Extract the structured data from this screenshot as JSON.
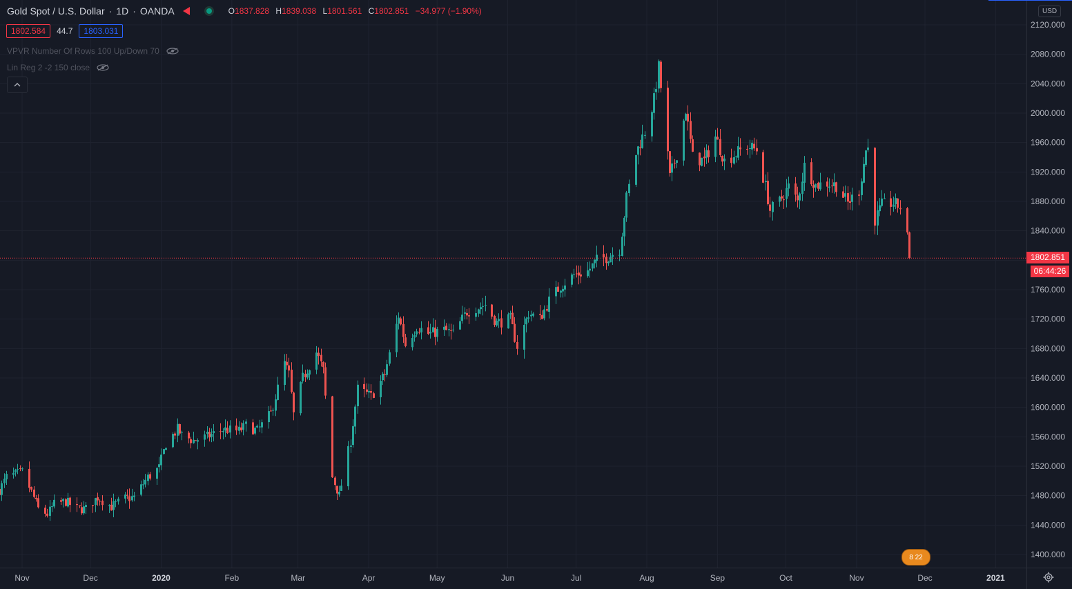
{
  "header": {
    "symbol": "Gold Spot / U.S. Dollar",
    "interval": "1D",
    "exchange": "OANDA",
    "open_label": "O",
    "open": "1837.828",
    "high_label": "H",
    "high": "1839.038",
    "low_label": "L",
    "low": "1801.561",
    "close_label": "C",
    "close": "1802.851",
    "change": "−34.977 (−1.90%)"
  },
  "quote": {
    "bid": "1802.584",
    "spread": "44.7",
    "ask": "1803.031"
  },
  "indicators": [
    {
      "label": "VPVR Number Of Rows 100 Up/Down 70"
    },
    {
      "label": "Lin Reg 2 -2 150 close"
    }
  ],
  "price_axis": {
    "currency": "USD",
    "current_price": "1802.851",
    "countdown": "06:44:26"
  },
  "events_badge": "8 22",
  "colors": {
    "background": "#161a25",
    "up": "#26a69a",
    "down": "#ef5350",
    "grid": "#1f2330",
    "text": "#b2b5be",
    "price_line": "#f23645"
  },
  "chart_data": {
    "type": "candlestick",
    "title": "Gold Spot / U.S. Dollar",
    "ylim": [
      1380,
      2130
    ],
    "y_ticks": [
      1400,
      1440,
      1480,
      1520,
      1560,
      1600,
      1640,
      1680,
      1720,
      1760,
      1800,
      1840,
      1880,
      1920,
      1960,
      2000,
      2040,
      2080,
      2120
    ],
    "y_tick_labels": [
      "1400.000",
      "1440.000",
      "1480.000",
      "1520.000",
      "1560.000",
      "1600.000",
      "1640.000",
      "1680.000",
      "1720.000",
      "1760.000",
      "1800.000",
      "1840.000",
      "1880.000",
      "1920.000",
      "1960.000",
      "2000.000",
      "2040.000",
      "2080.000",
      "2120.000"
    ],
    "x_tick_labels": [
      {
        "label": "Nov",
        "date": "2019-11-01"
      },
      {
        "label": "Dec",
        "date": "2019-12-01"
      },
      {
        "label": "2020",
        "date": "2020-01-01",
        "bold": true
      },
      {
        "label": "Feb",
        "date": "2020-02-01"
      },
      {
        "label": "Mar",
        "date": "2020-03-01"
      },
      {
        "label": "Apr",
        "date": "2020-04-01"
      },
      {
        "label": "May",
        "date": "2020-05-01"
      },
      {
        "label": "Jun",
        "date": "2020-06-01"
      },
      {
        "label": "Jul",
        "date": "2020-07-01"
      },
      {
        "label": "Aug",
        "date": "2020-08-01"
      },
      {
        "label": "Sep",
        "date": "2020-09-01"
      },
      {
        "label": "Oct",
        "date": "2020-10-01"
      },
      {
        "label": "Nov",
        "date": "2020-11-01"
      },
      {
        "label": "Dec",
        "date": "2020-12-01"
      },
      {
        "label": "2021",
        "date": "2021-01-01",
        "bold": true
      }
    ],
    "current_price": 1802.851,
    "close_keypoints": [
      [
        "2019-10-22",
        1488
      ],
      [
        "2019-10-25",
        1505
      ],
      [
        "2019-11-01",
        1512
      ],
      [
        "2019-11-05",
        1485
      ],
      [
        "2019-11-08",
        1462
      ],
      [
        "2019-11-12",
        1455
      ],
      [
        "2019-11-15",
        1468
      ],
      [
        "2019-11-20",
        1472
      ],
      [
        "2019-11-25",
        1462
      ],
      [
        "2019-11-29",
        1462
      ],
      [
        "2019-12-04",
        1478
      ],
      [
        "2019-12-10",
        1465
      ],
      [
        "2019-12-16",
        1476
      ],
      [
        "2019-12-20",
        1478
      ],
      [
        "2019-12-26",
        1505
      ],
      [
        "2019-12-31",
        1518
      ],
      [
        "2020-01-03",
        1551
      ],
      [
        "2020-01-08",
        1570
      ],
      [
        "2020-01-10",
        1562
      ],
      [
        "2020-01-15",
        1555
      ],
      [
        "2020-01-21",
        1560
      ],
      [
        "2020-01-28",
        1570
      ],
      [
        "2020-02-04",
        1568
      ],
      [
        "2020-02-07",
        1575
      ],
      [
        "2020-02-12",
        1568
      ],
      [
        "2020-02-18",
        1592
      ],
      [
        "2020-02-24",
        1660
      ],
      [
        "2020-02-26",
        1645
      ],
      [
        "2020-02-28",
        1590
      ],
      [
        "2020-03-03",
        1640
      ],
      [
        "2020-03-09",
        1675
      ],
      [
        "2020-03-12",
        1650
      ],
      [
        "2020-03-16",
        1505
      ],
      [
        "2020-03-19",
        1480
      ],
      [
        "2020-03-24",
        1555
      ],
      [
        "2020-03-27",
        1625
      ],
      [
        "2020-04-02",
        1615
      ],
      [
        "2020-04-08",
        1645
      ],
      [
        "2020-04-14",
        1725
      ],
      [
        "2020-04-17",
        1685
      ],
      [
        "2020-04-22",
        1710
      ],
      [
        "2020-04-27",
        1700
      ],
      [
        "2020-05-04",
        1705
      ],
      [
        "2020-05-08",
        1700
      ],
      [
        "2020-05-14",
        1730
      ],
      [
        "2020-05-18",
        1735
      ],
      [
        "2020-05-22",
        1740
      ],
      [
        "2020-05-27",
        1715
      ],
      [
        "2020-06-02",
        1720
      ],
      [
        "2020-06-05",
        1683
      ],
      [
        "2020-06-10",
        1728
      ],
      [
        "2020-06-15",
        1720
      ],
      [
        "2020-06-19",
        1745
      ],
      [
        "2020-06-24",
        1765
      ],
      [
        "2020-06-30",
        1780
      ],
      [
        "2020-07-06",
        1785
      ],
      [
        "2020-07-10",
        1800
      ],
      [
        "2020-07-15",
        1805
      ],
      [
        "2020-07-20",
        1815
      ],
      [
        "2020-07-23",
        1885
      ],
      [
        "2020-07-27",
        1945
      ],
      [
        "2020-07-31",
        1975
      ],
      [
        "2020-08-04",
        2018
      ],
      [
        "2020-08-06",
        2062
      ],
      [
        "2020-08-07",
        2035
      ],
      [
        "2020-08-11",
        1912
      ],
      [
        "2020-08-14",
        1945
      ],
      [
        "2020-08-18",
        2005
      ],
      [
        "2020-08-21",
        1940
      ],
      [
        "2020-08-26",
        1935
      ],
      [
        "2020-08-31",
        1968
      ],
      [
        "2020-09-04",
        1935
      ],
      [
        "2020-09-09",
        1945
      ],
      [
        "2020-09-14",
        1955
      ],
      [
        "2020-09-18",
        1950
      ],
      [
        "2020-09-22",
        1900
      ],
      [
        "2020-09-24",
        1868
      ],
      [
        "2020-09-28",
        1880
      ],
      [
        "2020-10-02",
        1900
      ],
      [
        "2020-10-06",
        1880
      ],
      [
        "2020-10-09",
        1928
      ],
      [
        "2020-10-14",
        1902
      ],
      [
        "2020-10-19",
        1905
      ],
      [
        "2020-10-23",
        1902
      ],
      [
        "2020-10-28",
        1878
      ],
      [
        "2020-11-02",
        1895
      ],
      [
        "2020-11-05",
        1950
      ],
      [
        "2020-11-06",
        1952
      ],
      [
        "2020-11-09",
        1855
      ],
      [
        "2020-11-12",
        1875
      ],
      [
        "2020-11-17",
        1878
      ],
      [
        "2020-11-20",
        1872
      ],
      [
        "2020-11-23",
        1837.828
      ],
      [
        "2020-11-24",
        1802.851
      ]
    ]
  }
}
